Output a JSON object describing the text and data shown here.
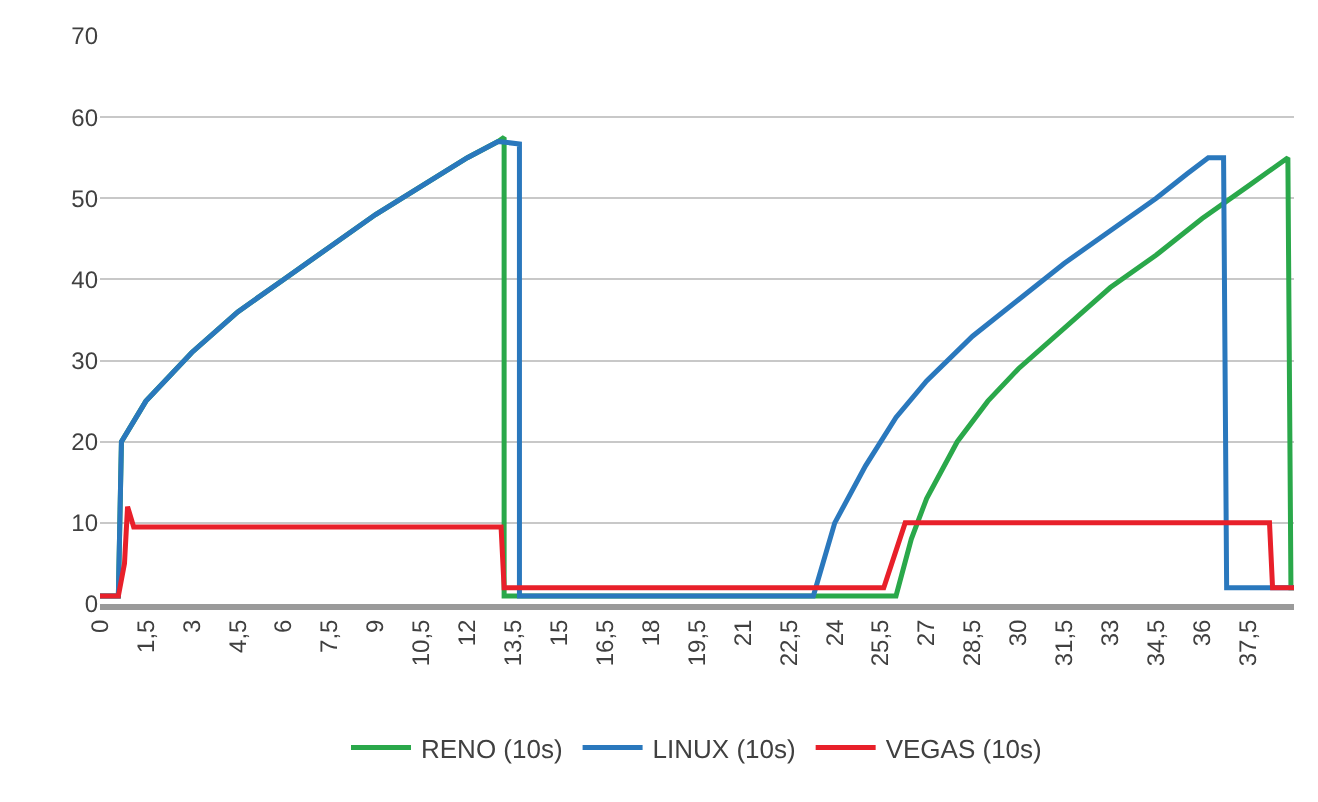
{
  "chart_data": {
    "type": "line",
    "xlim": [
      0,
      39
    ],
    "ylim": [
      0,
      70
    ],
    "xticks": [
      0,
      {
        "value": 1.5,
        "label": "1,5"
      },
      3,
      {
        "value": 4.5,
        "label": "4,5"
      },
      6,
      {
        "value": 7.5,
        "label": "7,5"
      },
      9,
      {
        "value": 10.5,
        "label": "10,5"
      },
      12,
      {
        "value": 13.5,
        "label": "13,5"
      },
      15,
      {
        "value": 16.5,
        "label": "16,5"
      },
      18,
      {
        "value": 19.5,
        "label": "19,5"
      },
      21,
      {
        "value": 22.5,
        "label": "22,5"
      },
      24,
      {
        "value": 25.5,
        "label": "25,5"
      },
      27,
      {
        "value": 28.5,
        "label": "28,5"
      },
      30,
      {
        "value": 31.5,
        "label": "31,5"
      },
      33,
      {
        "value": 34.5,
        "label": "34,5"
      },
      36,
      {
        "value": 37.5,
        "label": "37,5"
      }
    ],
    "yticks": [
      0,
      10,
      20,
      30,
      40,
      50,
      60,
      70
    ],
    "grid": "y",
    "legend": "bottom",
    "marker": "none",
    "line_style": "solid",
    "series": [
      {
        "name": "RENO (10s)",
        "color": "#2aa84a",
        "x": [
          0,
          0.6,
          0.7,
          1.5,
          3,
          4.5,
          6,
          7.5,
          9,
          10.5,
          12,
          13,
          13.2,
          13.2,
          26,
          26.5,
          27,
          28,
          29,
          30,
          31.5,
          33,
          34.5,
          36,
          37.5,
          38.8,
          38.9,
          39
        ],
        "values": [
          1,
          1,
          20,
          25,
          31,
          36,
          40,
          44,
          48,
          51.5,
          55,
          57,
          57.5,
          1,
          1,
          8,
          13,
          20,
          25,
          29,
          34,
          39,
          43,
          47.5,
          51.5,
          55,
          2,
          2
        ]
      },
      {
        "name": "LINUX (10s)",
        "color": "#2a78bd",
        "x": [
          0,
          0.6,
          0.7,
          1.5,
          3,
          4.5,
          6,
          7.5,
          9,
          10.5,
          12,
          13,
          13.7,
          13.7,
          23.3,
          24,
          25,
          26,
          27,
          28.5,
          30,
          31.5,
          33,
          34.5,
          35.5,
          36.2,
          36.7,
          36.8,
          39
        ],
        "values": [
          1,
          1,
          20,
          25,
          31,
          36,
          40,
          44,
          48,
          51.5,
          55,
          57,
          56.7,
          1,
          1,
          10,
          17,
          23,
          27.5,
          33,
          37.5,
          42,
          46,
          50,
          53,
          55,
          55,
          2,
          2
        ]
      },
      {
        "name": "VEGAS (10s)",
        "color": "#e8202a",
        "x": [
          0,
          0.6,
          0.8,
          0.9,
          1.1,
          13.1,
          13.2,
          25.6,
          26.3,
          38.2,
          38.3,
          39
        ],
        "values": [
          1,
          1,
          5,
          12,
          9.5,
          9.5,
          2,
          2,
          10,
          10,
          2,
          2
        ]
      }
    ]
  }
}
